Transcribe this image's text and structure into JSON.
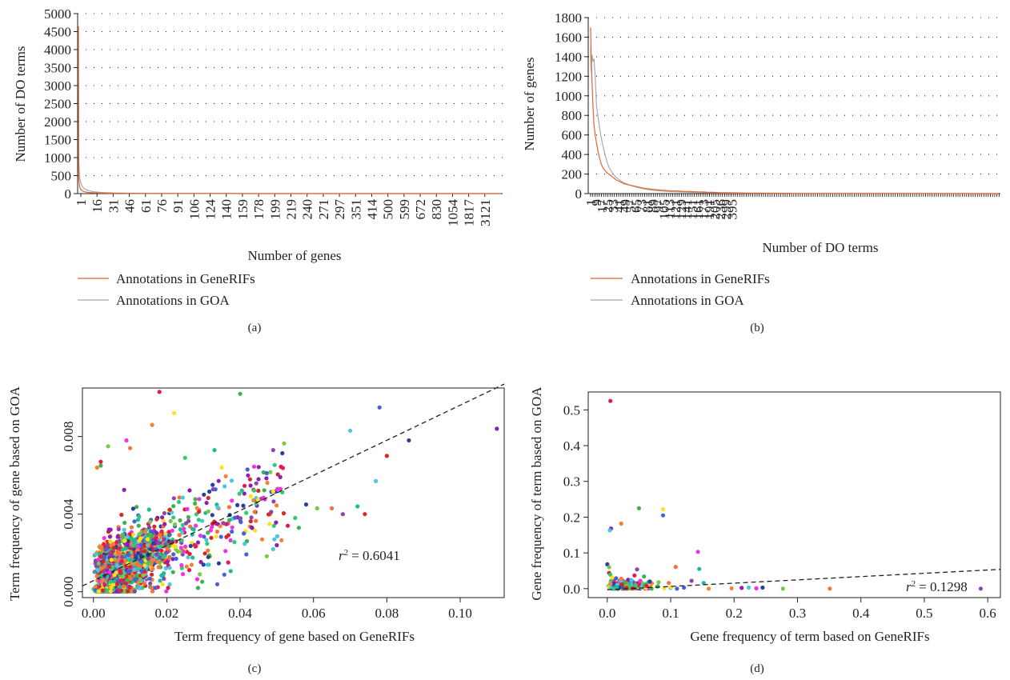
{
  "colors": {
    "generifs_line": "#e8612c",
    "goa_line": "#a7a9ac",
    "text": "#231f20",
    "scatter_palette": [
      "#e6194b",
      "#3cb44b",
      "#ffe119",
      "#4363d8",
      "#f58231",
      "#911eb4",
      "#46c8e6",
      "#f032e6",
      "#2a3f9a",
      "#7ac943",
      "#ff6f3c",
      "#8e44ad",
      "#1abc9c",
      "#d62728",
      "#2ecc71"
    ]
  },
  "chart_data": [
    {
      "panel": "(a)",
      "type": "line",
      "xlabel": "Number of genes",
      "ylabel": "Number of DO terms",
      "yticks": [
        0,
        500,
        1000,
        1500,
        2000,
        2500,
        3000,
        3500,
        4000,
        4500,
        5000
      ],
      "ylim": [
        0,
        5000
      ],
      "x_tick_labels": [
        "1",
        "16",
        "31",
        "46",
        "61",
        "76",
        "91",
        "106",
        "124",
        "140",
        "159",
        "178",
        "199",
        "219",
        "240",
        "271",
        "297",
        "351",
        "414",
        "500",
        "599",
        "672",
        "830",
        "1054",
        "1817",
        "3121"
      ],
      "grid": "dotted horizontal",
      "legend": "below",
      "series": [
        {
          "name": "Annotations in GeneRIFs",
          "y": [
            4650,
            700,
            380,
            250,
            170,
            125,
            95,
            75,
            60,
            50,
            42,
            36,
            31,
            27,
            24,
            21,
            19,
            17,
            15,
            14,
            13,
            12,
            11,
            10,
            9,
            8,
            8,
            7,
            7,
            6,
            6,
            6,
            5,
            5,
            5,
            4,
            4,
            4,
            4,
            3,
            3,
            3,
            3,
            3,
            2,
            2,
            2,
            2,
            2,
            2,
            2,
            2,
            2,
            2,
            1,
            1,
            1,
            1,
            1,
            1,
            1,
            1,
            1,
            1,
            1,
            1,
            1,
            1,
            1,
            1,
            1,
            1,
            1,
            1,
            1,
            1,
            1,
            1,
            1,
            1,
            1,
            1,
            1,
            1,
            1,
            1,
            1,
            1,
            1,
            1
          ]
        },
        {
          "name": "Annotations in GOA",
          "y": [
            3300,
            1500,
            900,
            600,
            420,
            320,
            250,
            200,
            160,
            130,
            110,
            95,
            82,
            70,
            60,
            52,
            46,
            40,
            35,
            31,
            28,
            25,
            22,
            20,
            18,
            16,
            14,
            13,
            12,
            11,
            10,
            9,
            8,
            8,
            7,
            7,
            6,
            6,
            5,
            5,
            5,
            4,
            4,
            4,
            3,
            3,
            3,
            3,
            3,
            2,
            2,
            2,
            2,
            2,
            2,
            2,
            2,
            1,
            1,
            1,
            1,
            1,
            1,
            1,
            1,
            1,
            1,
            1,
            1,
            1,
            1,
            1,
            1,
            1,
            1,
            1,
            1,
            1,
            1,
            1,
            1,
            1,
            1,
            1,
            1,
            1,
            1,
            1,
            1,
            1
          ]
        }
      ]
    },
    {
      "panel": "(b)",
      "type": "line",
      "xlabel": "Number of DO terms",
      "ylabel": "Number of genes",
      "yticks": [
        0,
        200,
        400,
        600,
        800,
        1000,
        1200,
        1400,
        1600,
        1800
      ],
      "ylim": [
        0,
        1800
      ],
      "x_tick_labels": [
        "1",
        "9",
        "17",
        "25",
        "33",
        "41",
        "49",
        "57",
        "65",
        "73",
        "81",
        "89",
        "97",
        "105",
        "113",
        "121",
        "129",
        "141",
        "151",
        "161",
        "173",
        "191",
        "205",
        "236",
        "299",
        "395"
      ],
      "grid": "dotted horizontal",
      "legend": "below",
      "series": [
        {
          "name": "Annotations in GeneRIFs",
          "y": [
            1700,
            1400,
            1150,
            900,
            700,
            600,
            520,
            440,
            380,
            320,
            280,
            250,
            230,
            210,
            200,
            185,
            170,
            155,
            140,
            130,
            120,
            110,
            100,
            95,
            90,
            85,
            80,
            75,
            70,
            65,
            60,
            56,
            52,
            48,
            45,
            42,
            40,
            38,
            36,
            34,
            32,
            30,
            28,
            27,
            26,
            25,
            24,
            23,
            22,
            21,
            20,
            19,
            18,
            17,
            16,
            15,
            14,
            13,
            12,
            11,
            10,
            10,
            9,
            9,
            8,
            8,
            7,
            7,
            6,
            6,
            6,
            5,
            5,
            5,
            4,
            4,
            4,
            4,
            3,
            3,
            3,
            3,
            3,
            2,
            2,
            2,
            2,
            2,
            2,
            2
          ]
        },
        {
          "name": "Annotations in GOA",
          "y": [
            1500,
            1250,
            1420,
            1350,
            1380,
            1200,
            900,
            800,
            700,
            600,
            520,
            450,
            380,
            320,
            270,
            240,
            210,
            185,
            165,
            150,
            135,
            120,
            110,
            100,
            92,
            84,
            76,
            70,
            64,
            58,
            53,
            48,
            44,
            40,
            37,
            34,
            31,
            29,
            27,
            25,
            23,
            21,
            20,
            19,
            18,
            17,
            16,
            15,
            14,
            13,
            12,
            11,
            10,
            10,
            9,
            9,
            8,
            8,
            7,
            7,
            6,
            6,
            6,
            5,
            5,
            5,
            4,
            4,
            4,
            4,
            3,
            3,
            3,
            3,
            3,
            2,
            2,
            2,
            2,
            2,
            2,
            2,
            2,
            1,
            1,
            1,
            1,
            1,
            1,
            1
          ]
        }
      ]
    },
    {
      "panel": "(c)",
      "type": "scatter",
      "xlabel": "Term frequency of gene based on GeneRIFs",
      "ylabel": "Term frequency of gene based on GOA",
      "xticks": [
        "0.00",
        "0.02",
        "0.04",
        "0.06",
        "0.08",
        "0.10"
      ],
      "yticks": [
        "0.000",
        "0.004",
        "0.008"
      ],
      "xlim": [
        -0.003,
        0.112
      ],
      "ylim": [
        -0.0003,
        0.0105
      ],
      "annotation": "= 0.6041",
      "r_squared": 0.6041,
      "regression_line": {
        "x1": -0.003,
        "y1": 0.0003,
        "x2": 0.112,
        "y2": 0.0107
      },
      "outliers": [
        [
          0.018,
          0.0103
        ],
        [
          0.04,
          0.0102
        ],
        [
          0.022,
          0.0092
        ],
        [
          0.078,
          0.0095
        ],
        [
          0.016,
          0.0086
        ],
        [
          0.11,
          0.0084
        ],
        [
          0.07,
          0.0083
        ],
        [
          0.009,
          0.0078
        ],
        [
          0.086,
          0.0078
        ],
        [
          0.004,
          0.0075
        ],
        [
          0.01,
          0.0074
        ],
        [
          0.049,
          0.0073
        ],
        [
          0.033,
          0.0073
        ],
        [
          0.08,
          0.007
        ],
        [
          0.025,
          0.0069
        ],
        [
          0.002,
          0.0067
        ],
        [
          0.002,
          0.0065
        ],
        [
          0.035,
          0.0064
        ],
        [
          0.042,
          0.0063
        ],
        [
          0.001,
          0.0064
        ],
        [
          0.045,
          0.0058
        ],
        [
          0.077,
          0.0057
        ],
        [
          0.051,
          0.0053
        ],
        [
          0.058,
          0.0045
        ],
        [
          0.061,
          0.0043
        ],
        [
          0.065,
          0.0043
        ],
        [
          0.068,
          0.004
        ],
        [
          0.072,
          0.0044
        ],
        [
          0.074,
          0.004
        ],
        [
          0.055,
          0.0038
        ],
        [
          0.053,
          0.0034
        ],
        [
          0.056,
          0.0033
        ],
        [
          0.048,
          0.0035
        ],
        [
          0.041,
          0.003
        ],
        [
          0.046,
          0.0027
        ],
        [
          0.05,
          0.0024
        ],
        [
          0.049,
          0.0022
        ],
        [
          0.036,
          0.0021
        ],
        [
          0.03,
          0.0014
        ],
        [
          0.029,
          0.0009
        ]
      ]
    },
    {
      "panel": "(d)",
      "type": "scatter",
      "xlabel": "Gene frequency of term based on GeneRIFs",
      "ylabel": "Gene frequency of term based on GOA",
      "xticks": [
        "0.0",
        "0.1",
        "0.2",
        "0.3",
        "0.4",
        "0.5",
        "0.6"
      ],
      "yticks": [
        "0.0",
        "0.1",
        "0.2",
        "0.3",
        "0.4",
        "0.5"
      ],
      "xlim": [
        -0.03,
        0.62
      ],
      "ylim": [
        -0.025,
        0.55
      ],
      "annotation": "= 0.1298",
      "r_squared": 0.1298,
      "regression_line": {
        "x1": 0.0,
        "y1": -0.003,
        "x2": 0.62,
        "y2": 0.054
      },
      "points": [
        [
          0.005,
          0.525
        ],
        [
          0.05,
          0.225
        ],
        [
          0.088,
          0.222
        ],
        [
          0.088,
          0.205
        ],
        [
          0.022,
          0.182
        ],
        [
          0.006,
          0.168
        ],
        [
          0.004,
          0.163
        ],
        [
          0.143,
          0.103
        ],
        [
          0.0,
          0.068
        ],
        [
          0.003,
          0.06
        ],
        [
          0.108,
          0.061
        ],
        [
          0.047,
          0.054
        ],
        [
          0.145,
          0.055
        ],
        [
          0.003,
          0.044
        ],
        [
          0.005,
          0.039
        ],
        [
          0.043,
          0.037
        ],
        [
          0.058,
          0.034
        ],
        [
          0.008,
          0.031
        ],
        [
          0.014,
          0.029
        ],
        [
          0.022,
          0.028
        ],
        [
          0.033,
          0.025
        ],
        [
          0.038,
          0.024
        ],
        [
          0.052,
          0.022
        ],
        [
          0.067,
          0.02
        ],
        [
          0.081,
          0.018
        ],
        [
          0.097,
          0.016
        ],
        [
          0.133,
          0.022
        ],
        [
          0.152,
          0.016
        ],
        [
          0.023,
          0.012
        ],
        [
          0.045,
          0.009
        ],
        [
          0.062,
          0.008
        ],
        [
          0.079,
          0.006
        ],
        [
          0.101,
          0.004
        ],
        [
          0.121,
          0.003
        ],
        [
          0.196,
          0.001
        ],
        [
          0.212,
          0.002
        ],
        [
          0.223,
          0.003
        ],
        [
          0.235,
          0.001
        ],
        [
          0.245,
          0.003
        ],
        [
          0.277,
          0.0
        ],
        [
          0.351,
          0.0
        ],
        [
          0.589,
          0.0
        ],
        [
          0.015,
          0.004
        ],
        [
          0.03,
          0.002
        ],
        [
          0.01,
          0.0
        ],
        [
          0.04,
          0.001
        ],
        [
          0.07,
          0.0
        ],
        [
          0.09,
          0.001
        ],
        [
          0.11,
          0.0
        ],
        [
          0.16,
          0.0
        ]
      ]
    }
  ],
  "panel_labels": [
    "(a)",
    "(b)",
    "(c)",
    "(d)"
  ],
  "r_symbol": "r"
}
